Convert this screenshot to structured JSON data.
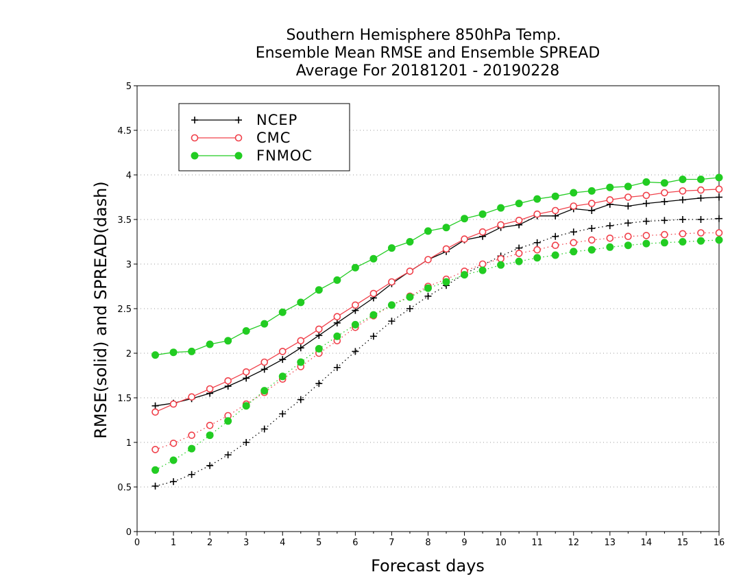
{
  "chart_data": {
    "type": "line",
    "title_lines": [
      "Southern Hemisphere 850hPa Temp.",
      "Ensemble Mean RMSE and Ensemble SPREAD",
      "Average For 20181201 - 20190228"
    ],
    "xlabel": "Forecast days",
    "ylabel": "RMSE(solid) and SPREAD(dash)",
    "xlim": [
      0,
      16
    ],
    "ylim": [
      0,
      5
    ],
    "xticks": [
      "0",
      "1",
      "2",
      "3",
      "4",
      "5",
      "6",
      "7",
      "8",
      "9",
      "10",
      "11",
      "12",
      "13",
      "14",
      "15",
      "16"
    ],
    "yticks": [
      "0",
      "0.5",
      "1",
      "1.5",
      "2",
      "2.5",
      "3",
      "3.5",
      "4",
      "4.5",
      "5"
    ],
    "grid": true,
    "legend_position": "top-left",
    "x": [
      0.5,
      1,
      1.5,
      2,
      2.5,
      3,
      3.5,
      4,
      4.5,
      5,
      5.5,
      6,
      6.5,
      7,
      7.5,
      8,
      8.5,
      9,
      9.5,
      10,
      10.5,
      11,
      11.5,
      12,
      12.5,
      13,
      13.5,
      14,
      14.5,
      15,
      15.5,
      16
    ],
    "series": [
      {
        "name": "NCEP",
        "color": "#000000",
        "marker": "plus",
        "style": "solid",
        "values": [
          1.41,
          1.44,
          1.49,
          1.55,
          1.63,
          1.72,
          1.82,
          1.93,
          2.06,
          2.2,
          2.34,
          2.48,
          2.62,
          2.78,
          2.92,
          3.05,
          3.14,
          3.27,
          3.31,
          3.41,
          3.44,
          3.54,
          3.54,
          3.62,
          3.6,
          3.67,
          3.65,
          3.68,
          3.7,
          3.72,
          3.74,
          3.75
        ]
      },
      {
        "name": "CMC",
        "color": "#f0404a",
        "marker": "circle-open",
        "style": "solid",
        "values": [
          1.34,
          1.43,
          1.51,
          1.6,
          1.69,
          1.79,
          1.9,
          2.02,
          2.14,
          2.27,
          2.41,
          2.54,
          2.67,
          2.8,
          2.92,
          3.05,
          3.17,
          3.28,
          3.36,
          3.44,
          3.49,
          3.56,
          3.6,
          3.65,
          3.68,
          3.72,
          3.75,
          3.77,
          3.8,
          3.82,
          3.83,
          3.84
        ]
      },
      {
        "name": "FNMOC",
        "color": "#22cc22",
        "marker": "circle-filled",
        "style": "solid",
        "values": [
          1.98,
          2.01,
          2.02,
          2.1,
          2.14,
          2.25,
          2.33,
          2.46,
          2.57,
          2.71,
          2.82,
          2.96,
          3.06,
          3.18,
          3.25,
          3.37,
          3.41,
          3.51,
          3.56,
          3.63,
          3.68,
          3.73,
          3.76,
          3.8,
          3.82,
          3.86,
          3.87,
          3.92,
          3.91,
          3.95,
          3.95,
          3.97
        ]
      },
      {
        "name": "NCEP",
        "color": "#000000",
        "marker": "plus",
        "style": "dash",
        "values": [
          0.51,
          0.56,
          0.64,
          0.74,
          0.86,
          1.0,
          1.15,
          1.32,
          1.48,
          1.66,
          1.84,
          2.02,
          2.19,
          2.36,
          2.5,
          2.64,
          2.76,
          2.89,
          2.99,
          3.09,
          3.18,
          3.24,
          3.31,
          3.36,
          3.4,
          3.43,
          3.46,
          3.48,
          3.49,
          3.5,
          3.5,
          3.51
        ]
      },
      {
        "name": "CMC",
        "color": "#f0404a",
        "marker": "circle-open",
        "style": "dash",
        "values": [
          0.92,
          0.99,
          1.08,
          1.19,
          1.3,
          1.43,
          1.56,
          1.71,
          1.85,
          2.0,
          2.14,
          2.29,
          2.42,
          2.54,
          2.64,
          2.75,
          2.83,
          2.92,
          3.0,
          3.06,
          3.12,
          3.16,
          3.21,
          3.24,
          3.27,
          3.29,
          3.31,
          3.32,
          3.33,
          3.34,
          3.35,
          3.35
        ]
      },
      {
        "name": "FNMOC",
        "color": "#22cc22",
        "marker": "circle-filled",
        "style": "dash",
        "values": [
          0.69,
          0.8,
          0.93,
          1.08,
          1.24,
          1.41,
          1.58,
          1.74,
          1.9,
          2.05,
          2.19,
          2.32,
          2.43,
          2.54,
          2.63,
          2.73,
          2.8,
          2.88,
          2.93,
          2.99,
          3.03,
          3.07,
          3.1,
          3.14,
          3.16,
          3.19,
          3.21,
          3.23,
          3.24,
          3.25,
          3.26,
          3.27
        ]
      }
    ]
  }
}
